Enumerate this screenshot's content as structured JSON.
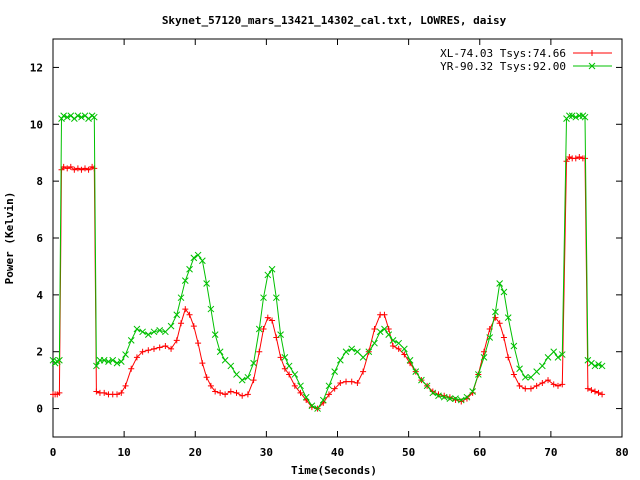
{
  "chart_data": {
    "type": "line",
    "title": "Skynet_57120_mars_13421_14302_cal.txt, LOWRES, daisy",
    "xlabel": "Time(Seconds)",
    "ylabel": "Power (Kelvin)",
    "xlim": [
      0,
      80
    ],
    "ylim": [
      -1,
      13
    ],
    "xticks": [
      0,
      10,
      20,
      30,
      40,
      50,
      60,
      70,
      80
    ],
    "yticks": [
      0,
      2,
      4,
      6,
      8,
      10,
      12
    ],
    "grid": false,
    "legend_position": "top-right",
    "series": [
      {
        "name": "XL-74.03 Tsys:74.66",
        "color": "#ff0000",
        "marker": "+",
        "points": [
          [
            0,
            0.5
          ],
          [
            0.3,
            0.5
          ],
          [
            0.6,
            0.5
          ],
          [
            0.9,
            0.55
          ],
          [
            1.2,
            8.4
          ],
          [
            1.5,
            8.5
          ],
          [
            2,
            8.45
          ],
          [
            2.5,
            8.5
          ],
          [
            3,
            8.4
          ],
          [
            3.5,
            8.45
          ],
          [
            4,
            8.4
          ],
          [
            4.5,
            8.45
          ],
          [
            5,
            8.4
          ],
          [
            5.5,
            8.5
          ],
          [
            5.8,
            8.45
          ],
          [
            6.1,
            0.6
          ],
          [
            6.6,
            0.55
          ],
          [
            7.2,
            0.55
          ],
          [
            7.8,
            0.5
          ],
          [
            8.4,
            0.5
          ],
          [
            9,
            0.5
          ],
          [
            9.6,
            0.55
          ],
          [
            10.2,
            0.8
          ],
          [
            11,
            1.4
          ],
          [
            11.8,
            1.8
          ],
          [
            12.6,
            2.0
          ],
          [
            13.4,
            2.05
          ],
          [
            14.2,
            2.1
          ],
          [
            15,
            2.15
          ],
          [
            15.8,
            2.2
          ],
          [
            16.6,
            2.1
          ],
          [
            17.4,
            2.4
          ],
          [
            18,
            3.0
          ],
          [
            18.6,
            3.5
          ],
          [
            19.2,
            3.3
          ],
          [
            19.8,
            2.9
          ],
          [
            20.4,
            2.3
          ],
          [
            21,
            1.6
          ],
          [
            21.6,
            1.1
          ],
          [
            22.2,
            0.8
          ],
          [
            22.8,
            0.6
          ],
          [
            23.5,
            0.55
          ],
          [
            24.2,
            0.5
          ],
          [
            25,
            0.6
          ],
          [
            25.8,
            0.55
          ],
          [
            26.6,
            0.45
          ],
          [
            27.4,
            0.5
          ],
          [
            28.2,
            1.0
          ],
          [
            29,
            2.0
          ],
          [
            29.6,
            2.8
          ],
          [
            30.2,
            3.2
          ],
          [
            30.8,
            3.1
          ],
          [
            31.4,
            2.5
          ],
          [
            32,
            1.8
          ],
          [
            32.6,
            1.4
          ],
          [
            33.2,
            1.2
          ],
          [
            34,
            0.8
          ],
          [
            34.8,
            0.55
          ],
          [
            35.6,
            0.3
          ],
          [
            36.4,
            0.05
          ],
          [
            37.2,
            0.0
          ],
          [
            38,
            0.2
          ],
          [
            38.8,
            0.5
          ],
          [
            39.6,
            0.7
          ],
          [
            40.4,
            0.9
          ],
          [
            41.2,
            0.95
          ],
          [
            42,
            0.95
          ],
          [
            42.8,
            0.9
          ],
          [
            43.6,
            1.3
          ],
          [
            44.4,
            2.0
          ],
          [
            45.2,
            2.8
          ],
          [
            46,
            3.3
          ],
          [
            46.6,
            3.3
          ],
          [
            47.2,
            2.8
          ],
          [
            47.8,
            2.2
          ],
          [
            48.6,
            2.1
          ],
          [
            49.4,
            1.9
          ],
          [
            50.2,
            1.6
          ],
          [
            51,
            1.3
          ],
          [
            51.8,
            1.0
          ],
          [
            52.6,
            0.8
          ],
          [
            53.4,
            0.6
          ],
          [
            54.2,
            0.5
          ],
          [
            55,
            0.45
          ],
          [
            55.8,
            0.4
          ],
          [
            56.6,
            0.3
          ],
          [
            57.4,
            0.25
          ],
          [
            58.2,
            0.35
          ],
          [
            59,
            0.55
          ],
          [
            59.8,
            1.2
          ],
          [
            60.6,
            2.0
          ],
          [
            61.4,
            2.8
          ],
          [
            62.2,
            3.2
          ],
          [
            62.8,
            3.0
          ],
          [
            63.4,
            2.5
          ],
          [
            64,
            1.8
          ],
          [
            64.8,
            1.2
          ],
          [
            65.6,
            0.8
          ],
          [
            66.4,
            0.7
          ],
          [
            67.2,
            0.7
          ],
          [
            68,
            0.8
          ],
          [
            68.8,
            0.9
          ],
          [
            69.6,
            1.0
          ],
          [
            70.4,
            0.85
          ],
          [
            71,
            0.8
          ],
          [
            71.6,
            0.85
          ],
          [
            72.2,
            8.7
          ],
          [
            72.6,
            8.85
          ],
          [
            73,
            8.8
          ],
          [
            73.5,
            8.8
          ],
          [
            74,
            8.85
          ],
          [
            74.5,
            8.8
          ],
          [
            74.8,
            8.8
          ],
          [
            75.2,
            0.7
          ],
          [
            75.7,
            0.65
          ],
          [
            76.2,
            0.6
          ],
          [
            76.7,
            0.55
          ],
          [
            77.2,
            0.5
          ]
        ]
      },
      {
        "name": "YR-90.32 Tsys:92.00",
        "color": "#00c000",
        "marker": "x",
        "points": [
          [
            0,
            1.7
          ],
          [
            0.3,
            1.6
          ],
          [
            0.6,
            1.65
          ],
          [
            0.9,
            1.7
          ],
          [
            1.2,
            10.2
          ],
          [
            1.5,
            10.3
          ],
          [
            2,
            10.25
          ],
          [
            2.5,
            10.3
          ],
          [
            3,
            10.2
          ],
          [
            3.5,
            10.3
          ],
          [
            4,
            10.25
          ],
          [
            4.5,
            10.3
          ],
          [
            5,
            10.2
          ],
          [
            5.5,
            10.3
          ],
          [
            5.8,
            10.25
          ],
          [
            6.1,
            1.5
          ],
          [
            6.6,
            1.7
          ],
          [
            7.2,
            1.7
          ],
          [
            7.8,
            1.65
          ],
          [
            8.4,
            1.7
          ],
          [
            9,
            1.6
          ],
          [
            9.6,
            1.65
          ],
          [
            10.2,
            1.9
          ],
          [
            11,
            2.4
          ],
          [
            11.8,
            2.8
          ],
          [
            12.6,
            2.7
          ],
          [
            13.4,
            2.6
          ],
          [
            14.2,
            2.7
          ],
          [
            15,
            2.75
          ],
          [
            15.8,
            2.7
          ],
          [
            16.6,
            2.9
          ],
          [
            17.4,
            3.3
          ],
          [
            18,
            3.9
          ],
          [
            18.6,
            4.5
          ],
          [
            19.2,
            4.9
          ],
          [
            19.8,
            5.3
          ],
          [
            20.4,
            5.4
          ],
          [
            21,
            5.2
          ],
          [
            21.6,
            4.4
          ],
          [
            22.2,
            3.5
          ],
          [
            22.8,
            2.6
          ],
          [
            23.5,
            2.0
          ],
          [
            24.2,
            1.7
          ],
          [
            25,
            1.5
          ],
          [
            25.8,
            1.2
          ],
          [
            26.6,
            1.0
          ],
          [
            27.4,
            1.1
          ],
          [
            28.2,
            1.6
          ],
          [
            29,
            2.8
          ],
          [
            29.6,
            3.9
          ],
          [
            30.2,
            4.7
          ],
          [
            30.8,
            4.9
          ],
          [
            31.4,
            3.9
          ],
          [
            32,
            2.6
          ],
          [
            32.6,
            1.8
          ],
          [
            33.2,
            1.5
          ],
          [
            34,
            1.2
          ],
          [
            34.8,
            0.8
          ],
          [
            35.6,
            0.4
          ],
          [
            36.4,
            0.1
          ],
          [
            37.2,
            0.0
          ],
          [
            38,
            0.3
          ],
          [
            38.8,
            0.8
          ],
          [
            39.6,
            1.3
          ],
          [
            40.4,
            1.7
          ],
          [
            41.2,
            2.0
          ],
          [
            42,
            2.1
          ],
          [
            42.8,
            2.0
          ],
          [
            43.6,
            1.8
          ],
          [
            44.4,
            2.0
          ],
          [
            45.2,
            2.3
          ],
          [
            46,
            2.7
          ],
          [
            46.6,
            2.8
          ],
          [
            47.2,
            2.6
          ],
          [
            47.8,
            2.4
          ],
          [
            48.6,
            2.3
          ],
          [
            49.4,
            2.1
          ],
          [
            50.2,
            1.7
          ],
          [
            51,
            1.3
          ],
          [
            51.8,
            1.0
          ],
          [
            52.6,
            0.8
          ],
          [
            53.4,
            0.55
          ],
          [
            54.2,
            0.45
          ],
          [
            55,
            0.4
          ],
          [
            55.8,
            0.35
          ],
          [
            56.6,
            0.35
          ],
          [
            57.4,
            0.3
          ],
          [
            58.2,
            0.4
          ],
          [
            59,
            0.6
          ],
          [
            59.8,
            1.2
          ],
          [
            60.6,
            1.8
          ],
          [
            61.4,
            2.5
          ],
          [
            62.2,
            3.4
          ],
          [
            62.8,
            4.4
          ],
          [
            63.4,
            4.1
          ],
          [
            64,
            3.2
          ],
          [
            64.8,
            2.2
          ],
          [
            65.6,
            1.4
          ],
          [
            66.4,
            1.1
          ],
          [
            67.2,
            1.1
          ],
          [
            68,
            1.3
          ],
          [
            68.8,
            1.5
          ],
          [
            69.6,
            1.8
          ],
          [
            70.4,
            2.0
          ],
          [
            71,
            1.8
          ],
          [
            71.6,
            1.9
          ],
          [
            72.2,
            10.2
          ],
          [
            72.6,
            10.3
          ],
          [
            73,
            10.3
          ],
          [
            73.5,
            10.25
          ],
          [
            74,
            10.3
          ],
          [
            74.5,
            10.3
          ],
          [
            74.8,
            10.25
          ],
          [
            75.2,
            1.7
          ],
          [
            75.7,
            1.6
          ],
          [
            76.2,
            1.5
          ],
          [
            76.7,
            1.55
          ],
          [
            77.2,
            1.5
          ]
        ]
      }
    ]
  }
}
